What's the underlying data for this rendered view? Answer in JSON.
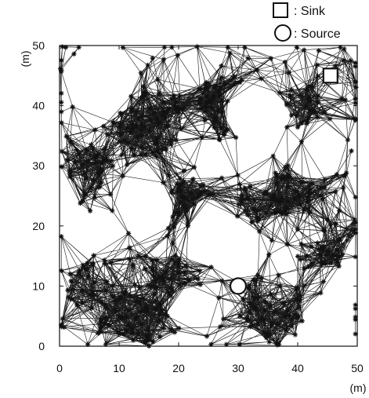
{
  "chart_data": {
    "type": "scatter",
    "title": "",
    "xlabel": "(m)",
    "ylabel": "(m)",
    "xlim": [
      0,
      50
    ],
    "ylim": [
      0,
      50
    ],
    "xticks": [
      "0",
      "10",
      "20",
      "30",
      "40",
      "50"
    ],
    "yticks": [
      "0",
      "10",
      "20",
      "30",
      "40",
      "50"
    ],
    "grid": false,
    "legend_position": "top-right",
    "legend": [
      {
        "marker": "square",
        "label": ": Sink"
      },
      {
        "marker": "circle",
        "label": ": Source"
      }
    ],
    "sink": {
      "x": 45.5,
      "y": 45
    },
    "source": {
      "x": 30,
      "y": 10
    },
    "node_density": {
      "description_marker": "star",
      "clusters": [
        {
          "x": 15,
          "y": 37,
          "r": 6,
          "n": 60
        },
        {
          "x": 22,
          "y": 24,
          "r": 4,
          "n": 35
        },
        {
          "x": 28,
          "y": 40,
          "r": 5,
          "n": 35
        },
        {
          "x": 40,
          "y": 26,
          "r": 5,
          "n": 40
        },
        {
          "x": 12,
          "y": 4,
          "r": 6,
          "n": 45
        },
        {
          "x": 36,
          "y": 6,
          "r": 6,
          "n": 45
        },
        {
          "x": 5,
          "y": 10,
          "r": 4,
          "n": 25
        },
        {
          "x": 5,
          "y": 30,
          "r": 4,
          "n": 25
        },
        {
          "x": 40,
          "y": 40,
          "r": 4,
          "n": 25
        },
        {
          "x": 18,
          "y": 12,
          "r": 4,
          "n": 25
        },
        {
          "x": 44,
          "y": 15,
          "r": 4,
          "n": 20
        },
        {
          "x": 33,
          "y": 24,
          "r": 3,
          "n": 15
        }
      ],
      "holes": [
        {
          "x": 7,
          "y": 43,
          "r": 5.2
        },
        {
          "x": 33,
          "y": 39,
          "r": 5
        },
        {
          "x": 15,
          "y": 25,
          "r": 3.2
        },
        {
          "x": 25,
          "y": 21,
          "r": 3.5
        },
        {
          "x": 30,
          "y": 16,
          "r": 4.5
        },
        {
          "x": 7,
          "y": 19,
          "r": 3.2
        },
        {
          "x": 43,
          "y": 31,
          "r": 3.2
        },
        {
          "x": 22,
          "y": 7,
          "r": 3.2
        },
        {
          "x": 44,
          "y": 5,
          "r": 3.2
        },
        {
          "x": 22,
          "y": 46,
          "r": 3.2
        }
      ]
    }
  }
}
